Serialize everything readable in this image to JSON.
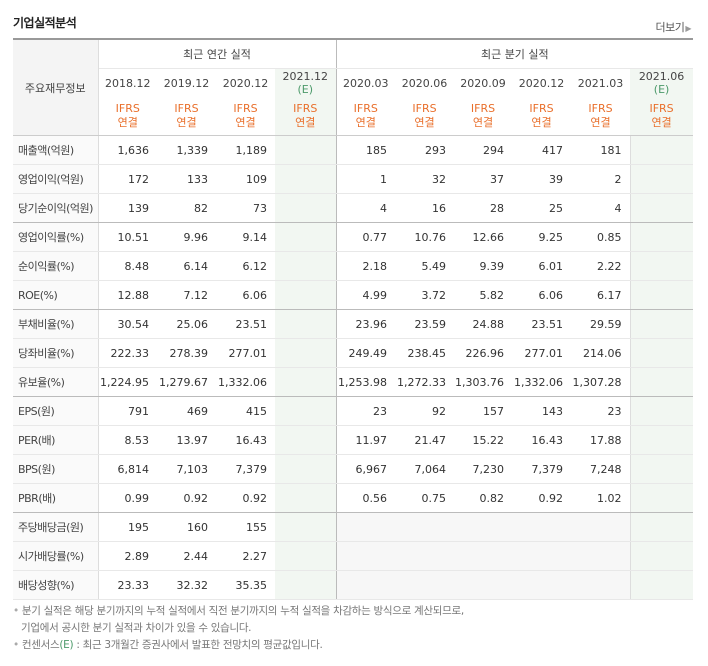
{
  "title": "기업실적분석",
  "more": "더보기",
  "label_header": "주요재무정보",
  "groups": {
    "annual": "최근 연간 실적",
    "quarter": "최근 분기 실적"
  },
  "periods": {
    "annual": [
      "2018.12",
      "2019.12",
      "2020.12",
      "2021.12"
    ],
    "quarter": [
      "2020.03",
      "2020.06",
      "2020.09",
      "2020.12",
      "2021.03",
      "2021.06"
    ],
    "est": "(E)"
  },
  "ifrs": "IFRS",
  "consol": "연결",
  "rows": [
    {
      "label": "매출액(억원)",
      "a": [
        "1,636",
        "1,339",
        "1,189",
        ""
      ],
      "q": [
        "185",
        "293",
        "294",
        "417",
        "181",
        ""
      ]
    },
    {
      "label": "영업이익(억원)",
      "a": [
        "172",
        "133",
        "109",
        ""
      ],
      "q": [
        "1",
        "32",
        "37",
        "39",
        "2",
        ""
      ]
    },
    {
      "label": "당기순이익(억원)",
      "a": [
        "139",
        "82",
        "73",
        ""
      ],
      "q": [
        "4",
        "16",
        "28",
        "25",
        "4",
        ""
      ]
    },
    {
      "label": "영업이익률(%)",
      "a": [
        "10.51",
        "9.96",
        "9.14",
        ""
      ],
      "q": [
        "0.77",
        "10.76",
        "12.66",
        "9.25",
        "0.85",
        ""
      ]
    },
    {
      "label": "순이익률(%)",
      "a": [
        "8.48",
        "6.14",
        "6.12",
        ""
      ],
      "q": [
        "2.18",
        "5.49",
        "9.39",
        "6.01",
        "2.22",
        ""
      ]
    },
    {
      "label": "ROE(%)",
      "a": [
        "12.88",
        "7.12",
        "6.06",
        ""
      ],
      "q": [
        "4.99",
        "3.72",
        "5.82",
        "6.06",
        "6.17",
        ""
      ]
    },
    {
      "label": "부채비율(%)",
      "a": [
        "30.54",
        "25.06",
        "23.51",
        ""
      ],
      "q": [
        "23.96",
        "23.59",
        "24.88",
        "23.51",
        "29.59",
        ""
      ]
    },
    {
      "label": "당좌비율(%)",
      "a": [
        "222.33",
        "278.39",
        "277.01",
        ""
      ],
      "q": [
        "249.49",
        "238.45",
        "226.96",
        "277.01",
        "214.06",
        ""
      ]
    },
    {
      "label": "유보율(%)",
      "a": [
        "1,224.95",
        "1,279.67",
        "1,332.06",
        ""
      ],
      "q": [
        "1,253.98",
        "1,272.33",
        "1,303.76",
        "1,332.06",
        "1,307.28",
        ""
      ]
    },
    {
      "label": "EPS(원)",
      "a": [
        "791",
        "469",
        "415",
        ""
      ],
      "q": [
        "23",
        "92",
        "157",
        "143",
        "23",
        ""
      ]
    },
    {
      "label": "PER(배)",
      "a": [
        "8.53",
        "13.97",
        "16.43",
        ""
      ],
      "q": [
        "11.97",
        "21.47",
        "15.22",
        "16.43",
        "17.88",
        ""
      ]
    },
    {
      "label": "BPS(원)",
      "a": [
        "6,814",
        "7,103",
        "7,379",
        ""
      ],
      "q": [
        "6,967",
        "7,064",
        "7,230",
        "7,379",
        "7,248",
        ""
      ]
    },
    {
      "label": "PBR(배)",
      "a": [
        "0.99",
        "0.92",
        "0.92",
        ""
      ],
      "q": [
        "0.56",
        "0.75",
        "0.82",
        "0.92",
        "1.02",
        ""
      ]
    },
    {
      "label": "주당배당금(원)",
      "a": [
        "195",
        "160",
        "155",
        ""
      ],
      "q": [
        "",
        "",
        "",
        "",
        "",
        ""
      ]
    },
    {
      "label": "시가배당률(%)",
      "a": [
        "2.89",
        "2.44",
        "2.27",
        ""
      ],
      "q": [
        "",
        "",
        "",
        "",
        "",
        ""
      ]
    },
    {
      "label": "배당성향(%)",
      "a": [
        "23.33",
        "32.32",
        "35.35",
        ""
      ],
      "q": [
        "",
        "",
        "",
        "",
        "",
        ""
      ]
    }
  ],
  "footnotes": [
    "분기 실적은 해당 분기까지의 누적 실적에서 직전 분기까지의 누적 실적을 차감하는 방식으로 계산되므로,",
    "기업에서 공시한 분기 실적과 차이가 있을 수 있습니다.",
    "컨센서스",
    "(E)",
    ": 최근 3개월간 증권사에서 발표한 전망치의 평균값입니다."
  ]
}
